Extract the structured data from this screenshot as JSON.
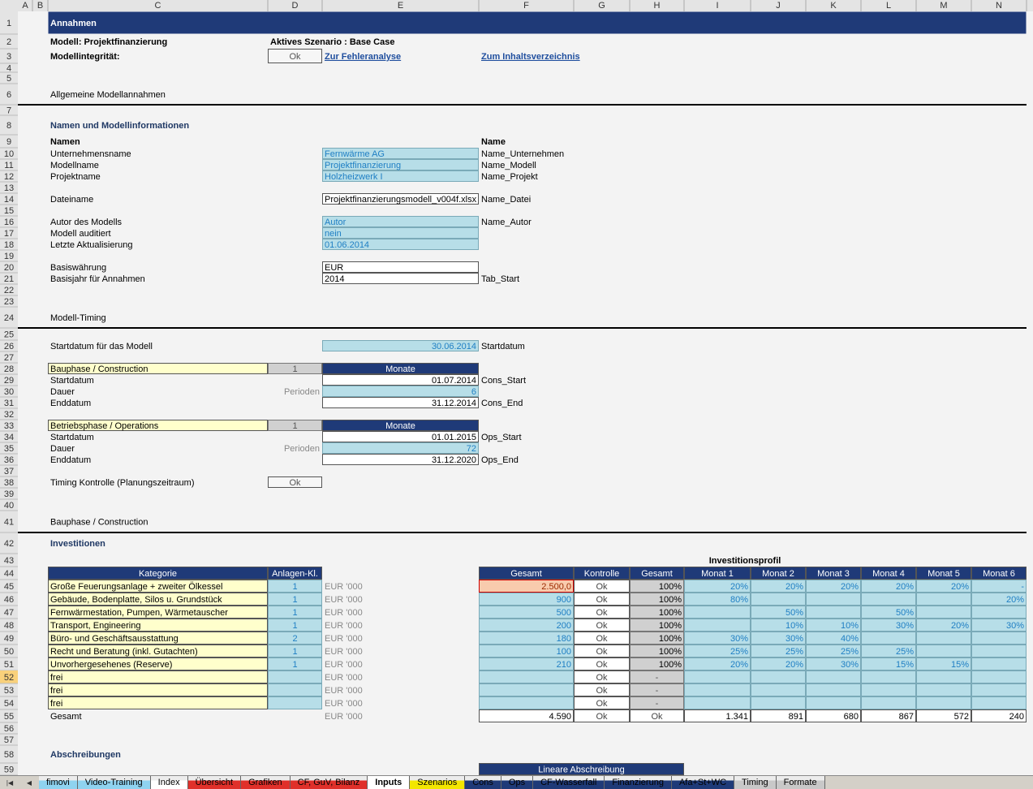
{
  "column_headers": [
    "A",
    "B",
    "C",
    "D",
    "E",
    "F",
    "G",
    "H",
    "I",
    "J",
    "K",
    "L",
    "M",
    "N"
  ],
  "rows": [
    {
      "number": "1",
      "cells": {
        "C": "Annahmen"
      }
    },
    {
      "number": "2",
      "cells": {
        "C": "Modell: Projektfinanzierung",
        "D": "Aktives Szenario : Base Case"
      }
    },
    {
      "number": "3",
      "cells": {
        "C": "Modellintegrität:",
        "D": "Ok",
        "E": "Zur Fehleranalyse",
        "F": "Zum Inhaltsverzeichnis"
      }
    },
    {
      "number": "4",
      "cells": {}
    },
    {
      "number": "5",
      "cells": {}
    },
    {
      "number": "6",
      "cells": {
        "C": "Allgemeine Modellannahmen"
      }
    },
    {
      "number": "7",
      "cells": {}
    },
    {
      "number": "8",
      "cells": {
        "C": "Namen und Modellinformationen"
      }
    },
    {
      "number": "9",
      "cells": {
        "C": "Namen",
        "F": "Name"
      }
    },
    {
      "number": "10",
      "cells": {
        "C": "Unternehmensname",
        "E": "Fernwärme AG",
        "F": "Name_Unternehmen"
      }
    },
    {
      "number": "11",
      "cells": {
        "C": "Modellname",
        "E": "Projektfinanzierung",
        "F": "Name_Modell"
      }
    },
    {
      "number": "12",
      "cells": {
        "C": "Projektname",
        "E": "Holzheizwerk I",
        "F": "Name_Projekt"
      }
    },
    {
      "number": "13",
      "cells": {}
    },
    {
      "number": "14",
      "cells": {
        "C": "Dateiname",
        "E": "Projektfinanzierungsmodell_v004f.xlsx",
        "F": "Name_Datei"
      }
    },
    {
      "number": "15",
      "cells": {}
    },
    {
      "number": "16",
      "cells": {
        "C": "Autor des Modells",
        "E": "Autor",
        "F": "Name_Autor"
      }
    },
    {
      "number": "17",
      "cells": {
        "C": "Modell auditiert",
        "E": "nein"
      }
    },
    {
      "number": "18",
      "cells": {
        "C": "Letzte Aktualisierung",
        "E": "01.06.2014"
      }
    },
    {
      "number": "19",
      "cells": {}
    },
    {
      "number": "20",
      "cells": {
        "C": "Basiswährung",
        "E": "EUR"
      }
    },
    {
      "number": "21",
      "cells": {
        "C": "Basisjahr für Annahmen",
        "E": "2014",
        "F": "Tab_Start"
      }
    },
    {
      "number": "22",
      "cells": {}
    },
    {
      "number": "23",
      "cells": {}
    },
    {
      "number": "24",
      "cells": {
        "C": "Modell-Timing"
      }
    },
    {
      "number": "25",
      "cells": {}
    },
    {
      "number": "26",
      "cells": {
        "C": "Startdatum für das Modell",
        "E": "30.06.2014",
        "F": "Startdatum"
      }
    },
    {
      "number": "27",
      "cells": {}
    },
    {
      "number": "28",
      "cells": {
        "C": "Bauphase / Construction",
        "D": "1",
        "E": "Monate"
      }
    },
    {
      "number": "29",
      "cells": {
        "C": "Startdatum",
        "E": "01.07.2014",
        "F": "Cons_Start"
      }
    },
    {
      "number": "30",
      "cells": {
        "C": "Dauer",
        "D": "Perioden",
        "E": "6"
      }
    },
    {
      "number": "31",
      "cells": {
        "C": "Enddatum",
        "E": "31.12.2014",
        "F": "Cons_End"
      }
    },
    {
      "number": "32",
      "cells": {}
    },
    {
      "number": "33",
      "cells": {
        "C": "Betriebsphase / Operations",
        "D": "1",
        "E": "Monate"
      }
    },
    {
      "number": "34",
      "cells": {
        "C": "Startdatum",
        "E": "01.01.2015",
        "F": "Ops_Start"
      }
    },
    {
      "number": "35",
      "cells": {
        "C": "Dauer",
        "D": "Perioden",
        "E": "72"
      }
    },
    {
      "number": "36",
      "cells": {
        "C": "Enddatum",
        "E": "31.12.2020",
        "F": "Ops_End"
      }
    },
    {
      "number": "37",
      "cells": {}
    },
    {
      "number": "38",
      "cells": {
        "C": "Timing Kontrolle (Planungszeitraum)",
        "D": "Ok"
      }
    },
    {
      "number": "39",
      "cells": {}
    },
    {
      "number": "40",
      "cells": {}
    },
    {
      "number": "41",
      "cells": {
        "C": "Bauphase / Construction"
      }
    },
    {
      "number": "42",
      "cells": {
        "C": "Investitionen"
      }
    },
    {
      "number": "43",
      "cells": {
        "I": "Investitionsprofil"
      }
    },
    {
      "number": "44",
      "cells": {
        "C": "Kategorie",
        "D": "Anlagen-Kl.",
        "F": "Gesamt",
        "G": "Kontrolle",
        "H": "Gesamt",
        "I": "Monat 1",
        "J": "Monat 2",
        "K": "Monat 3",
        "L": "Monat 4",
        "M": "Monat 5",
        "N": "Monat 6"
      }
    },
    {
      "number": "45",
      "cells": {
        "C": "Große Feuerungsanlage + zweiter Ölkessel",
        "D": "1",
        "E": "EUR '000",
        "F": "2.500,0",
        "G": "Ok",
        "H": "100%",
        "I": "20%",
        "J": "20%",
        "K": "20%",
        "L": "20%",
        "M": "20%",
        "N": "-"
      }
    },
    {
      "number": "46",
      "cells": {
        "C": "Gebäude, Bodenplatte, Silos u. Grundstück",
        "D": "1",
        "E": "EUR '000",
        "F": "900",
        "G": "Ok",
        "H": "100%",
        "I": "80%",
        "N": "20%"
      }
    },
    {
      "number": "47",
      "cells": {
        "C": "Fernwärmestation, Pumpen, Wärmetauscher",
        "D": "1",
        "E": "EUR '000",
        "F": "500",
        "G": "Ok",
        "H": "100%",
        "J": "50%",
        "L": "50%"
      }
    },
    {
      "number": "48",
      "cells": {
        "C": "Transport, Engineering",
        "D": "1",
        "E": "EUR '000",
        "F": "200",
        "G": "Ok",
        "H": "100%",
        "J": "10%",
        "K": "10%",
        "L": "30%",
        "M": "20%",
        "N": "30%"
      }
    },
    {
      "number": "49",
      "cells": {
        "C": "Büro- und Geschäftsausstattung",
        "D": "2",
        "E": "EUR '000",
        "F": "180",
        "G": "Ok",
        "H": "100%",
        "I": "30%",
        "J": "30%",
        "K": "40%"
      }
    },
    {
      "number": "50",
      "cells": {
        "C": "Recht und Beratung (inkl. Gutachten)",
        "D": "1",
        "E": "EUR '000",
        "F": "100",
        "G": "Ok",
        "H": "100%",
        "I": "25%",
        "J": "25%",
        "K": "25%",
        "L": "25%"
      }
    },
    {
      "number": "51",
      "cells": {
        "C": "Unvorhergesehenes (Reserve)",
        "D": "1",
        "E": "EUR '000",
        "F": "210",
        "G": "Ok",
        "H": "100%",
        "I": "20%",
        "J": "20%",
        "K": "30%",
        "L": "15%",
        "M": "15%"
      }
    },
    {
      "number": "52",
      "cells": {
        "C": "frei",
        "E": "EUR '000",
        "G": "Ok",
        "H": "-"
      }
    },
    {
      "number": "53",
      "cells": {
        "C": "frei",
        "E": "EUR '000",
        "G": "Ok",
        "H": "-"
      }
    },
    {
      "number": "54",
      "cells": {
        "C": "frei",
        "E": "EUR '000",
        "G": "Ok",
        "H": "-"
      }
    },
    {
      "number": "55",
      "cells": {
        "C": "Gesamt",
        "E": "EUR '000",
        "F": "4.590",
        "G": "Ok",
        "H": "Ok",
        "I": "1.341",
        "J": "891",
        "K": "680",
        "L": "867",
        "M": "572",
        "N": "240"
      }
    },
    {
      "number": "56",
      "cells": {}
    },
    {
      "number": "57",
      "cells": {}
    },
    {
      "number": "58",
      "cells": {
        "C": "Abschreibungen"
      }
    },
    {
      "number": "59",
      "cells": {
        "F": "Lineare Abschreibung"
      }
    }
  ],
  "sheet_tabs": [
    "fimovi",
    "Video-Training",
    "Index",
    "Übersicht",
    "Grafiken",
    "CF, GuV, Bilanz",
    "Inputs",
    "Szenarios",
    "Cons",
    "Ops",
    "CF-Wasserfall",
    "Finanzierung",
    "Afa+St+WC",
    "Timing",
    "Formate"
  ]
}
